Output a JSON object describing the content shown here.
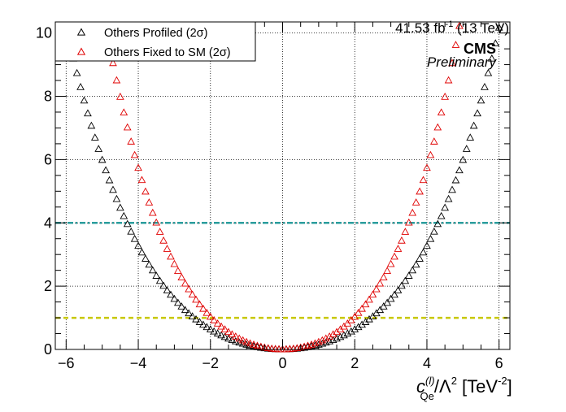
{
  "chart_data": {
    "type": "scatter",
    "xlim": [
      -6.3,
      6.3
    ],
    "ylim": [
      0,
      10.35
    ],
    "x_ticks": [
      {
        "value": -6,
        "label": "−6"
      },
      {
        "value": -4,
        "label": "−4"
      },
      {
        "value": -2,
        "label": "−2"
      },
      {
        "value": 0,
        "label": "0"
      },
      {
        "value": 2,
        "label": "2"
      },
      {
        "value": 4,
        "label": "4"
      },
      {
        "value": 6,
        "label": "6"
      }
    ],
    "y_ticks": [
      {
        "value": 0,
        "label": "0"
      },
      {
        "value": 2,
        "label": "2"
      },
      {
        "value": 4,
        "label": "4"
      },
      {
        "value": 6,
        "label": "6"
      },
      {
        "value": 8,
        "label": "8"
      },
      {
        "value": 10,
        "label": "10"
      }
    ],
    "grid": true,
    "xlabel": {
      "c": "c",
      "sup": "(l)",
      "sub": "Qe",
      "rest": "/Λ",
      "pow": "2",
      "unit": " [TeV",
      "unit_pow": "-2",
      "close": "]"
    },
    "lumi": {
      "value": "41.53 fb",
      "pow": "-1",
      "energy": " (13 TeV)"
    },
    "experiment": "CMS",
    "status": "Preliminary",
    "legend_position": "top-left",
    "reference_lines": [
      {
        "y": 4,
        "color": "#2a9d9d",
        "style": "dash-dot"
      },
      {
        "y": 1,
        "color": "#c8c800",
        "style": "dashed"
      }
    ],
    "series": [
      {
        "name": "Others Profiled (2σ)",
        "color": "#000000",
        "marker": "open-triangle",
        "a2": 0.142,
        "a4": 0.0039,
        "xmin": -6.2,
        "xmax": 6.3,
        "step": 0.1
      },
      {
        "name": "Others Fixed to SM (2σ)",
        "color": "#e00000",
        "marker": "open-triangle",
        "a2": 0.224,
        "a4": 0.0084,
        "xmin": -5.2,
        "xmax": 5.4,
        "step": 0.1
      }
    ]
  }
}
